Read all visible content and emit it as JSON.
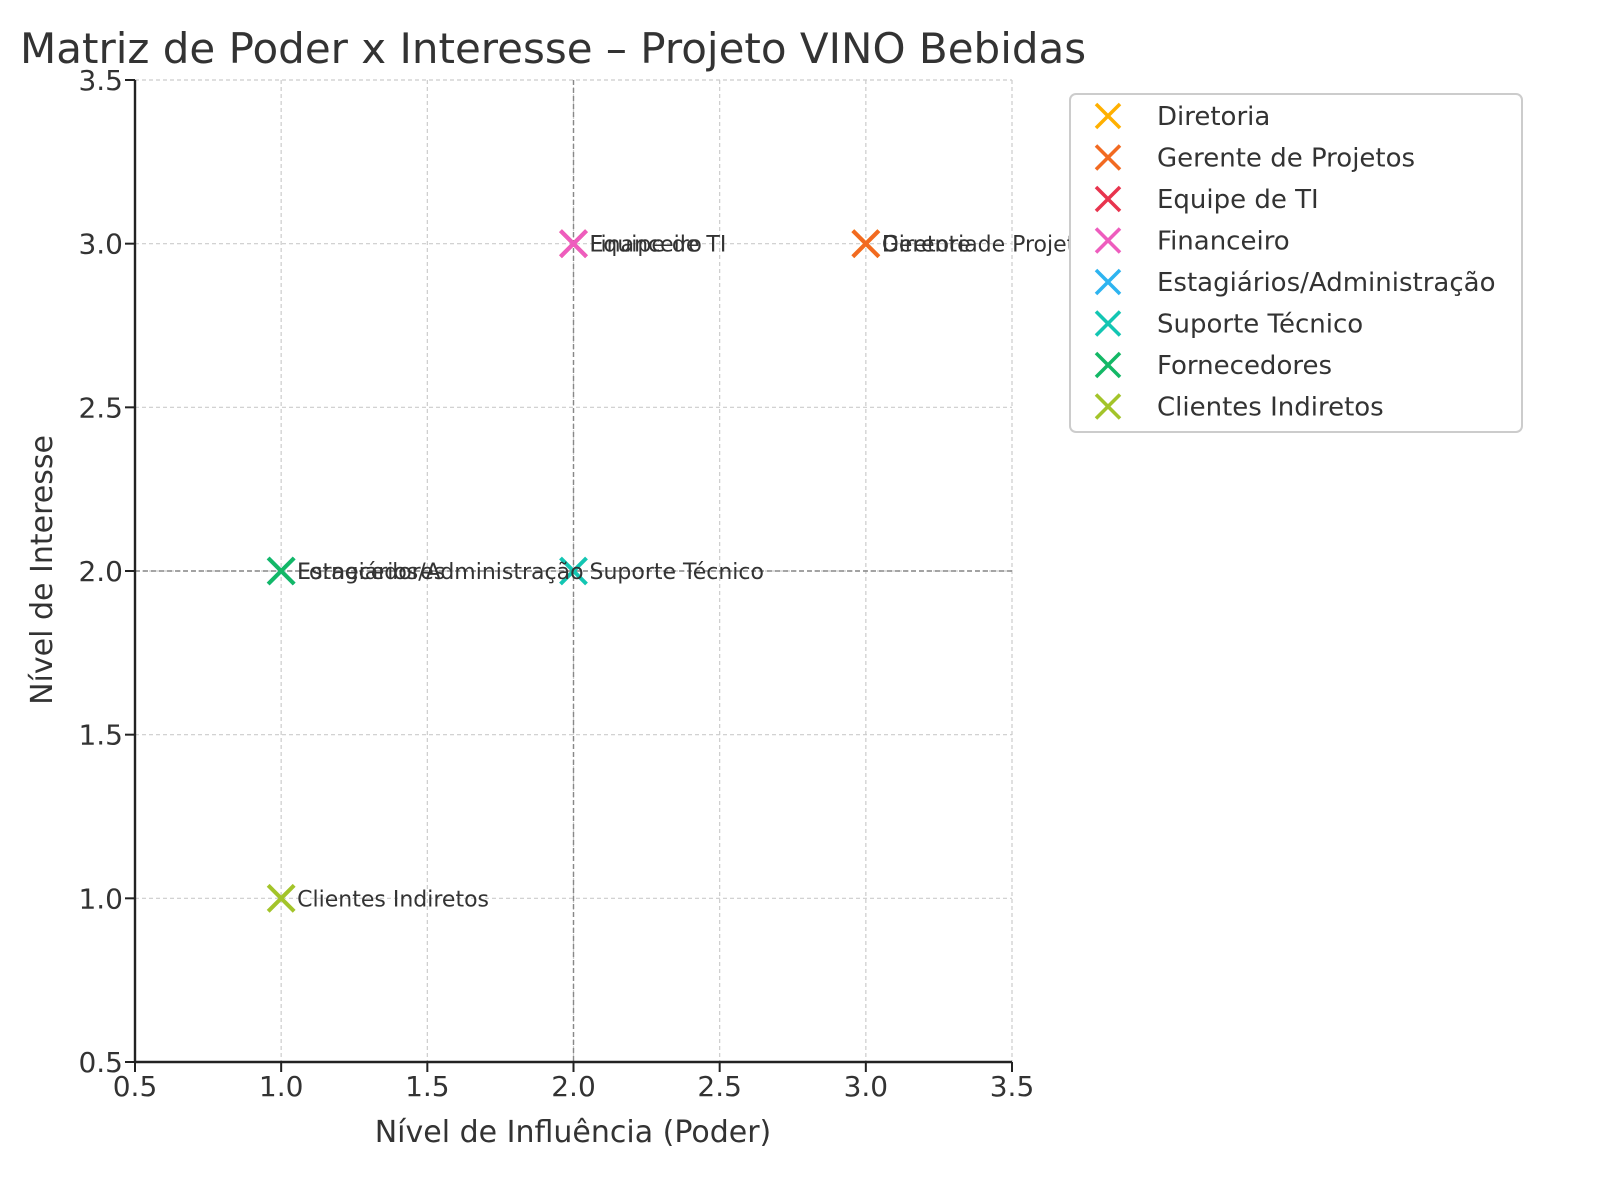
{
  "chart_data": {
    "type": "scatter",
    "title": "Matriz de Poder x Interesse – Projeto VINO Bebidas",
    "xlabel": "Nível de Influência (Poder)",
    "ylabel": "Nível de Interesse",
    "xlim": [
      0.5,
      3.5
    ],
    "ylim": [
      0.5,
      3.5
    ],
    "xticks": [
      "0.5",
      "1.0",
      "1.5",
      "2.0",
      "2.5",
      "3.0",
      "3.5"
    ],
    "yticks": [
      "0.5",
      "1.0",
      "1.5",
      "2.0",
      "2.5",
      "3.0",
      "3.5"
    ],
    "grid": true,
    "quadrant_lines": {
      "x": 2.0,
      "y": 2.0
    },
    "marker": "x",
    "legend_position": "outside-top-right",
    "series": [
      {
        "name": "Diretoria",
        "x": 3,
        "y": 3,
        "color": "#FFB000"
      },
      {
        "name": "Gerente de Projetos",
        "x": 3,
        "y": 3,
        "color": "#F26A21"
      },
      {
        "name": "Equipe de TI",
        "x": 2,
        "y": 3,
        "color": "#E8344E"
      },
      {
        "name": "Financeiro",
        "x": 2,
        "y": 3,
        "color": "#EE5DBE"
      },
      {
        "name": "Estagiários/Administração",
        "x": 1,
        "y": 2,
        "color": "#2EB4F0"
      },
      {
        "name": "Suporte Técnico",
        "x": 2,
        "y": 2,
        "color": "#13C6B3"
      },
      {
        "name": "Fornecedores",
        "x": 1,
        "y": 2,
        "color": "#14B866"
      },
      {
        "name": "Clientes Indiretos",
        "x": 1,
        "y": 1,
        "color": "#A3C42A"
      }
    ]
  }
}
